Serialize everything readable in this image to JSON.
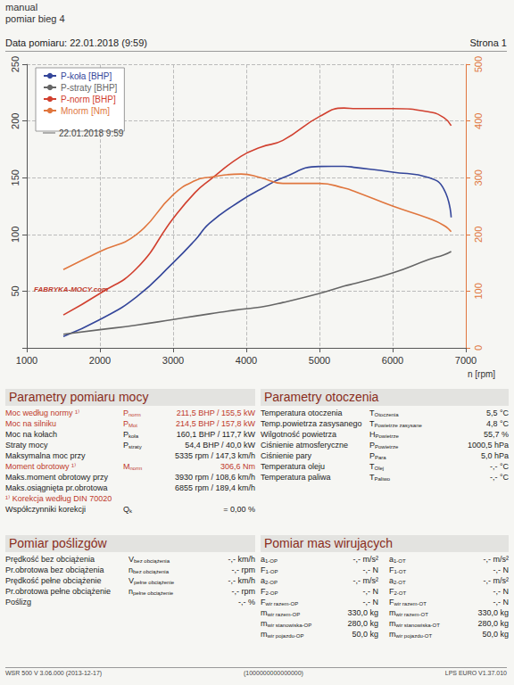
{
  "header": {
    "lines": [
      "manual",
      "pomiar bieg 4"
    ],
    "date": "Data pomiaru: 22.01.2018 (9:59)",
    "page": "Strona 1"
  },
  "chart_data": {
    "type": "line",
    "x": [
      1500,
      2000,
      2500,
      3000,
      3300,
      3500,
      3930,
      4200,
      4500,
      5000,
      5335,
      5500,
      6000,
      6500,
      6700,
      6800
    ],
    "series": [
      {
        "name": "P-koła [BHP]",
        "color": "#34469a",
        "values": [
          10,
          25,
          45,
          75,
          95,
          110,
          130,
          140,
          150,
          160,
          160.1,
          159,
          155,
          150,
          140,
          115
        ]
      },
      {
        "name": "P-straty [BHP]",
        "color": "#666666",
        "values": [
          12,
          16,
          20,
          25,
          28,
          30,
          34,
          36,
          40,
          48,
          54.4,
          57,
          66,
          78,
          82,
          85
        ]
      },
      {
        "name": "P-norm [BHP]",
        "color": "#d1402f",
        "values": [
          29,
          48,
          70,
          114,
          137,
          148,
          169,
          177,
          183,
          204,
          211.5,
          211,
          211,
          208,
          203,
          196
        ]
      },
      {
        "name": "Mnorm [Nm]",
        "color": "#e0763e",
        "axis": "y2",
        "values": [
          138,
          170,
          200,
          270,
          295,
          301,
          306.6,
          300,
          290,
          290,
          282,
          275,
          250,
          228,
          216,
          205
        ]
      }
    ],
    "xlim": [
      1000,
      7000
    ],
    "xticks": [
      1000,
      2000,
      3000,
      4000,
      5000,
      6000,
      7000
    ],
    "xlabel": "n [rpm]",
    "ylim": [
      0,
      250
    ],
    "yticks": [
      50,
      100,
      150,
      200,
      250
    ],
    "y2lim": [
      0,
      500
    ],
    "y2ticks": [
      0,
      100,
      200,
      300,
      400,
      500
    ],
    "grid": true,
    "legend": "top-left",
    "annotations": [
      {
        "text": "22.01.2018 9:59"
      },
      {
        "text": "FABRYKA-MOCY.com"
      }
    ]
  },
  "power_params": {
    "title": "Parametry pomiaru mocy",
    "rows": [
      {
        "label": "Moc według normy ¹⁾",
        "symbol": {
          "base": "P",
          "sub": "norm"
        },
        "value": "211,5 BHP / 155,5 kW",
        "color": "#c0392b"
      },
      {
        "label": "Moc na silniku",
        "symbol": {
          "base": "P",
          "sub": "Mot"
        },
        "value": "214,5 BHP / 157,8 kW",
        "color": "#c0392b"
      },
      {
        "label": "Moc na kołach",
        "symbol": {
          "base": "P",
          "sub": "koła"
        },
        "value": "160,1 BHP / 117,7 kW"
      },
      {
        "label": "Straty mocy",
        "symbol": {
          "base": "P",
          "sub": "straty"
        },
        "value": "54,4 BHP / 40,0 kW"
      },
      {
        "label": "Maksymalna moc przy",
        "value": "5335 rpm / 147,3 km/h"
      },
      {
        "label": "Moment obrotowy ¹⁾",
        "symbol": {
          "base": "M",
          "sub": "norm"
        },
        "value": "306,6 Nm",
        "color": "#c0392b"
      },
      {
        "label": "Maks.moment obrotowy przy",
        "value": "3930 rpm / 108,6 km/h"
      },
      {
        "label": "Maks.osiągnięta pr.obrotowa",
        "value": "6855 rpm / 189,4 km/h"
      },
      {
        "label": "¹⁾ Korekcja według DIN 70020",
        "color": "#c0392b"
      },
      {
        "label": "Współczynniki korekcji",
        "symbol": {
          "base": "Q",
          "sub": "k"
        },
        "value": "= 0,00 %"
      }
    ]
  },
  "ambient_params": {
    "title": "Parametry otoczenia",
    "rows": [
      {
        "label": "Temperatura otoczenia",
        "symbol": {
          "base": "T",
          "sub": "Otoczenia"
        },
        "value": "5,5 °C"
      },
      {
        "label": "Temp.powietrza zasysanego",
        "symbol": {
          "base": "T",
          "sub": "Powietrze zasysane"
        },
        "value": "4,8 °C"
      },
      {
        "label": "Wilgotność powietrza",
        "symbol": {
          "base": "H",
          "sub": "Powietrze"
        },
        "value": "55,7 %"
      },
      {
        "label": "Ciśnienie atmosferyczne",
        "symbol": {
          "base": "P",
          "sub": "Powietrze"
        },
        "value": "1000,5 hPa"
      },
      {
        "label": "Ciśnienie pary",
        "symbol": {
          "base": "P",
          "sub": "Para"
        },
        "value": "5,0 hPa"
      },
      {
        "label": "Temperatura oleju",
        "symbol": {
          "base": "T",
          "sub": "Olej"
        },
        "value": "-,- °C"
      },
      {
        "label": "Temperatura paliwa",
        "symbol": {
          "base": "T",
          "sub": "Paliwo"
        },
        "value": "-,- °C"
      }
    ]
  },
  "slip": {
    "title": "Pomiar poślizgów",
    "rows": [
      {
        "label": "Prędkość bez obciążenia",
        "symbol": {
          "base": "V",
          "sub": "bez obciążenia"
        },
        "value": "-,- km/h"
      },
      {
        "label": "Pr.obrotowa bez obciążenia",
        "symbol": {
          "base": "n",
          "sub": "bez obciążenia"
        },
        "value": "-,- rpm"
      },
      {
        "label": "Prędkość pełne obciążenie",
        "symbol": {
          "base": "V",
          "sub": "pełne obciążenie"
        },
        "value": "-,- km/h"
      },
      {
        "label": "Pr.obrotowa pełne obciążenie",
        "symbol": {
          "base": "n",
          "sub": "pełne obciążenie"
        },
        "value": "-,- rpm"
      },
      {
        "label": "Poślizg",
        "value": "-,- %"
      }
    ]
  },
  "masses": {
    "title": "Pomiar mas wirujących",
    "rows": [
      [
        {
          "base": "a",
          "sub": "1-OP"
        },
        "-,- m/s²",
        {
          "base": "a",
          "sub": "1-OT"
        },
        "-,- m/s²"
      ],
      [
        {
          "base": "F",
          "sub": "1-OP"
        },
        "-,- N",
        {
          "base": "F",
          "sub": "1-OT"
        },
        "-,- N"
      ],
      [
        {
          "base": "a",
          "sub": "2-OP"
        },
        "-,- m/s²",
        {
          "base": "a",
          "sub": "2-OT"
        },
        "-,- m/s²"
      ],
      [
        {
          "base": "F",
          "sub": "2-OP"
        },
        "-,- N",
        {
          "base": "F",
          "sub": "2-OT"
        },
        "-,- N"
      ],
      [
        {
          "base": "F",
          "sub": "wir razem-OP"
        },
        "-,- N",
        {
          "base": "F",
          "sub": "wir razem-OT"
        },
        "-,- N"
      ],
      [
        {
          "base": "m",
          "sub": "wir razem-OP"
        },
        "330,0 kg",
        {
          "base": "m",
          "sub": "wir razem-OT"
        },
        "330,0 kg"
      ],
      [
        {
          "base": "m",
          "sub": "wir stanowiska-OP"
        },
        "280,0 kg",
        {
          "base": "m",
          "sub": "wir stanowiska-OT"
        },
        "280,0 kg"
      ],
      [
        {
          "base": "m",
          "sub": "wir pojazdu-OP"
        },
        "50,0 kg",
        {
          "base": "m",
          "sub": "wir pojazdu-OT"
        },
        "50,0 kg"
      ]
    ]
  },
  "footer": [
    "WSR 500 V 3.06.000 (2013-12-17)",
    "(1000000000000000)",
    "LPS EURO V1.37.010"
  ]
}
